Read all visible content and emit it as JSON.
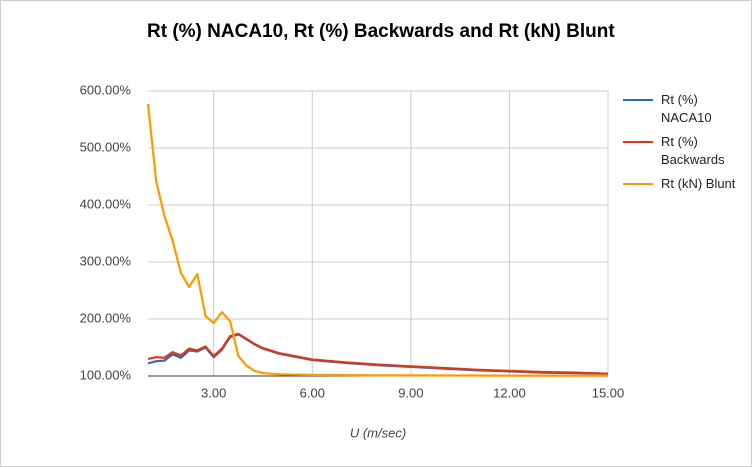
{
  "chart_data": {
    "type": "line",
    "title": "Rt (%) NACA10, Rt (%) Backwards and Rt (kN) Blunt",
    "x_label": "U (m/sec)",
    "x": [
      1,
      1.25,
      1.5,
      1.75,
      2,
      2.25,
      2.5,
      2.75,
      3,
      3.25,
      3.5,
      3.75,
      4,
      4.25,
      4.5,
      5,
      6,
      7,
      8,
      9,
      10,
      11,
      12,
      13,
      14,
      15
    ],
    "series": [
      {
        "name": "Rt (%) NACA10",
        "color": "#3366cc",
        "values": [
          122,
          126,
          127,
          138,
          132,
          145,
          143,
          150,
          133,
          146,
          168,
          173,
          164,
          155,
          148,
          139,
          128,
          123,
          119,
          116,
          113,
          110,
          108,
          106,
          105,
          104
        ]
      },
      {
        "name": "Rt (%) Backwards",
        "color": "#dc3912",
        "values": [
          130,
          133,
          132,
          142,
          136,
          148,
          145,
          152,
          135,
          148,
          170,
          174,
          165,
          156,
          149,
          140,
          129,
          124,
          120,
          117,
          114,
          111,
          109,
          107,
          106,
          104
        ]
      },
      {
        "name": "Rt (kN) Blunt",
        "color": "#ff9900",
        "values": [
          577,
          442,
          381,
          337,
          281,
          256,
          279,
          205,
          193,
          212,
          196,
          135,
          118,
          109,
          105,
          103,
          102,
          101.5,
          101,
          101,
          100.8,
          100.8,
          100.7,
          100.6,
          100.5,
          100.4
        ]
      }
    ],
    "xlim": [
      1,
      15
    ],
    "xticks": [
      {
        "value": 3,
        "label": "3.00"
      },
      {
        "value": 6,
        "label": "6.00"
      },
      {
        "value": 9,
        "label": "9.00"
      },
      {
        "value": 12,
        "label": "12.00"
      },
      {
        "value": 15,
        "label": "15.00"
      }
    ],
    "ylim": [
      100,
      600
    ],
    "yticks": [
      {
        "value": 100,
        "label": "100.00%"
      },
      {
        "value": 200,
        "label": "200.00%"
      },
      {
        "value": 300,
        "label": "300.00%"
      },
      {
        "value": 400,
        "label": "400.00%"
      },
      {
        "value": 500,
        "label": "500.00%"
      },
      {
        "value": 600,
        "label": "600.00%"
      }
    ],
    "grid": true,
    "legend": "right"
  }
}
